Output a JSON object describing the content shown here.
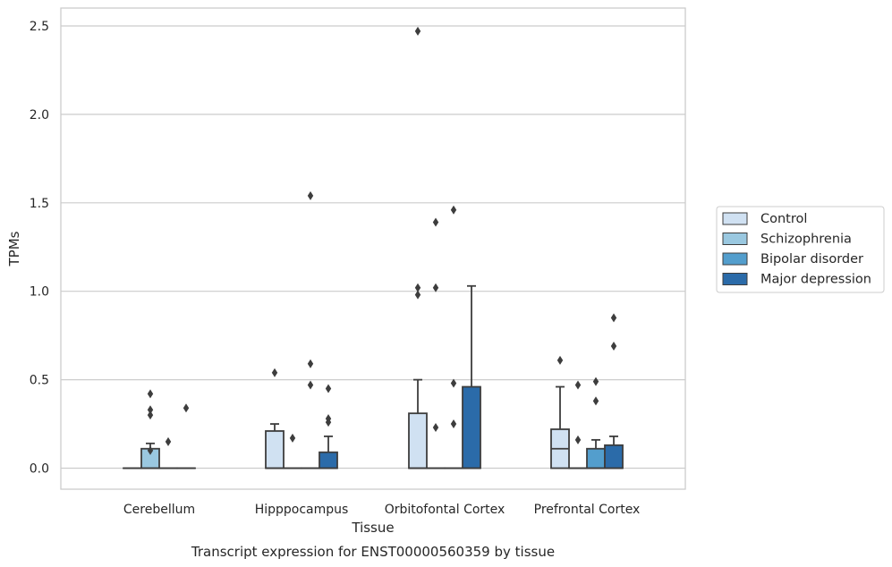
{
  "chart_data": {
    "type": "box",
    "caption": "Transcript expression for ENST00000560359 by tissue",
    "xlabel": "Tissue",
    "ylabel": "TPMs",
    "ylim": [
      -0.12,
      2.6
    ],
    "yticks": [
      0.0,
      0.5,
      1.0,
      1.5,
      2.0,
      2.5
    ],
    "ytick_labels": [
      "0.0",
      "0.5",
      "1.0",
      "1.5",
      "2.0",
      "2.5"
    ],
    "grid": "horizontal",
    "legend_position": "right, outside plot",
    "categories": [
      "Cerebellum",
      "Hipppocampus",
      "Orbitofontal Cortex",
      "Prefrontal Cortex"
    ],
    "series": [
      {
        "name": "Control",
        "color": "#d0e1f2",
        "boxes": [
          {
            "q1": 0,
            "median": 0,
            "q3": 0,
            "whisker_low": 0,
            "whisker_high": 0,
            "outliers": []
          },
          {
            "q1": 0,
            "median": 0,
            "q3": 0.21,
            "whisker_low": 0,
            "whisker_high": 0.25,
            "outliers": [
              0.54
            ]
          },
          {
            "q1": 0,
            "median": 0,
            "q3": 0.31,
            "whisker_low": 0,
            "whisker_high": 0.5,
            "outliers": [
              0.98,
              1.02,
              2.47
            ]
          },
          {
            "q1": 0,
            "median": 0.11,
            "q3": 0.22,
            "whisker_low": 0,
            "whisker_high": 0.46,
            "outliers": [
              0.61
            ]
          }
        ]
      },
      {
        "name": "Schizophrenia",
        "color": "#9ac8e0",
        "boxes": [
          {
            "q1": 0,
            "median": 0,
            "q3": 0.11,
            "whisker_low": 0,
            "whisker_high": 0.14,
            "outliers": [
              0.1,
              0.3,
              0.33,
              0.42
            ]
          },
          {
            "q1": 0,
            "median": 0,
            "q3": 0,
            "whisker_low": 0,
            "whisker_high": 0,
            "outliers": [
              0.17
            ]
          },
          {
            "q1": 0,
            "median": 0,
            "q3": 0,
            "whisker_low": 0,
            "whisker_high": 0,
            "outliers": [
              0.23,
              1.02,
              1.39
            ]
          },
          {
            "q1": 0,
            "median": 0,
            "q3": 0,
            "whisker_low": 0,
            "whisker_high": 0,
            "outliers": [
              0.16,
              0.47
            ]
          }
        ]
      },
      {
        "name": "Bipolar disorder",
        "color": "#539ecd",
        "boxes": [
          {
            "q1": 0,
            "median": 0,
            "q3": 0,
            "whisker_low": 0,
            "whisker_high": 0,
            "outliers": [
              0.15
            ]
          },
          {
            "q1": 0,
            "median": 0,
            "q3": 0,
            "whisker_low": 0,
            "whisker_high": 0,
            "outliers": [
              0.47,
              0.59,
              1.54
            ]
          },
          {
            "q1": 0,
            "median": 0,
            "q3": 0,
            "whisker_low": 0,
            "whisker_high": 0,
            "outliers": [
              0.25,
              0.48,
              1.46
            ]
          },
          {
            "q1": 0,
            "median": 0,
            "q3": 0.11,
            "whisker_low": 0,
            "whisker_high": 0.16,
            "outliers": [
              0.38,
              0.49
            ]
          }
        ]
      },
      {
        "name": "Major depression",
        "color": "#2b6ba9",
        "boxes": [
          {
            "q1": 0,
            "median": 0,
            "q3": 0,
            "whisker_low": 0,
            "whisker_high": 0,
            "outliers": [
              0.34
            ]
          },
          {
            "q1": 0,
            "median": 0,
            "q3": 0.09,
            "whisker_low": 0,
            "whisker_high": 0.18,
            "outliers": [
              0.26,
              0.28,
              0.45
            ]
          },
          {
            "q1": 0,
            "median": 0,
            "q3": 0.46,
            "whisker_low": 0,
            "whisker_high": 1.03,
            "outliers": []
          },
          {
            "q1": 0,
            "median": 0,
            "q3": 0.13,
            "whisker_low": 0,
            "whisker_high": 0.18,
            "outliers": [
              0.69,
              0.85
            ]
          }
        ]
      }
    ]
  }
}
